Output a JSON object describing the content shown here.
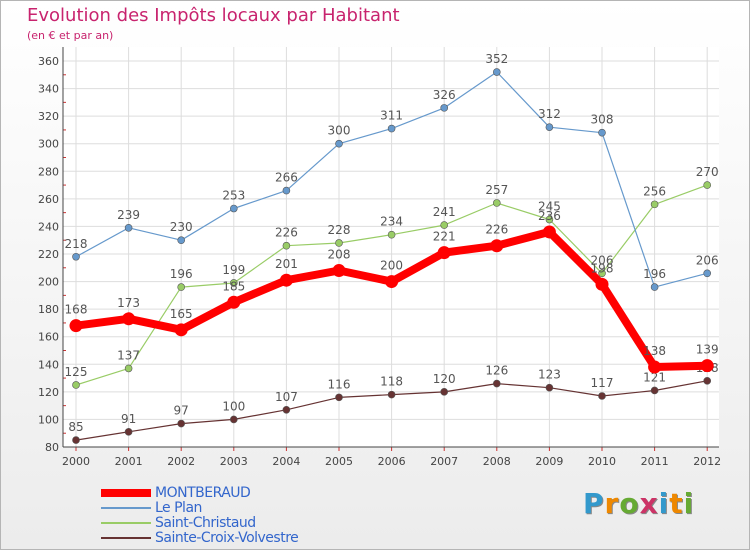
{
  "chart_data": {
    "type": "line",
    "title": "Evolution des Impôts locaux par Habitant",
    "subtitle": "(en € et par an)",
    "x": [
      "2000",
      "2001",
      "2002",
      "2003",
      "2004",
      "2005",
      "2006",
      "2007",
      "2008",
      "2009",
      "2010",
      "2011",
      "2012"
    ],
    "ylim": [
      80,
      360
    ],
    "yticks": [
      80,
      100,
      120,
      140,
      160,
      180,
      200,
      220,
      240,
      260,
      280,
      300,
      320,
      340,
      360
    ],
    "grid": true,
    "legend_position": "bottom-left",
    "series": [
      {
        "name": "MONTBERAUD",
        "color": "#ff0000",
        "values": [
          168,
          173,
          165,
          185,
          201,
          208,
          200,
          221,
          226,
          236,
          198,
          138,
          139
        ]
      },
      {
        "name": "Le Plan",
        "color": "#6699cc",
        "values": [
          218,
          239,
          230,
          253,
          266,
          300,
          311,
          326,
          352,
          312,
          308,
          196,
          206
        ]
      },
      {
        "name": "Saint-Christaud",
        "color": "#99cc66",
        "values": [
          125,
          137,
          196,
          199,
          226,
          228,
          234,
          241,
          257,
          245,
          206,
          256,
          270
        ]
      },
      {
        "name": "Sainte-Croix-Volvestre",
        "color": "#663333",
        "values": [
          85,
          91,
          97,
          100,
          107,
          116,
          118,
          120,
          126,
          123,
          117,
          121,
          128
        ]
      }
    ]
  },
  "logo": {
    "text": "Proxiti",
    "letters": [
      "P",
      "r",
      "o",
      "x",
      "i",
      "t",
      "i"
    ],
    "colors": [
      "#3399cc",
      "#ee8800",
      "#66aa33",
      "#cc3366",
      "#3399cc",
      "#ee8800",
      "#66aa33"
    ]
  }
}
